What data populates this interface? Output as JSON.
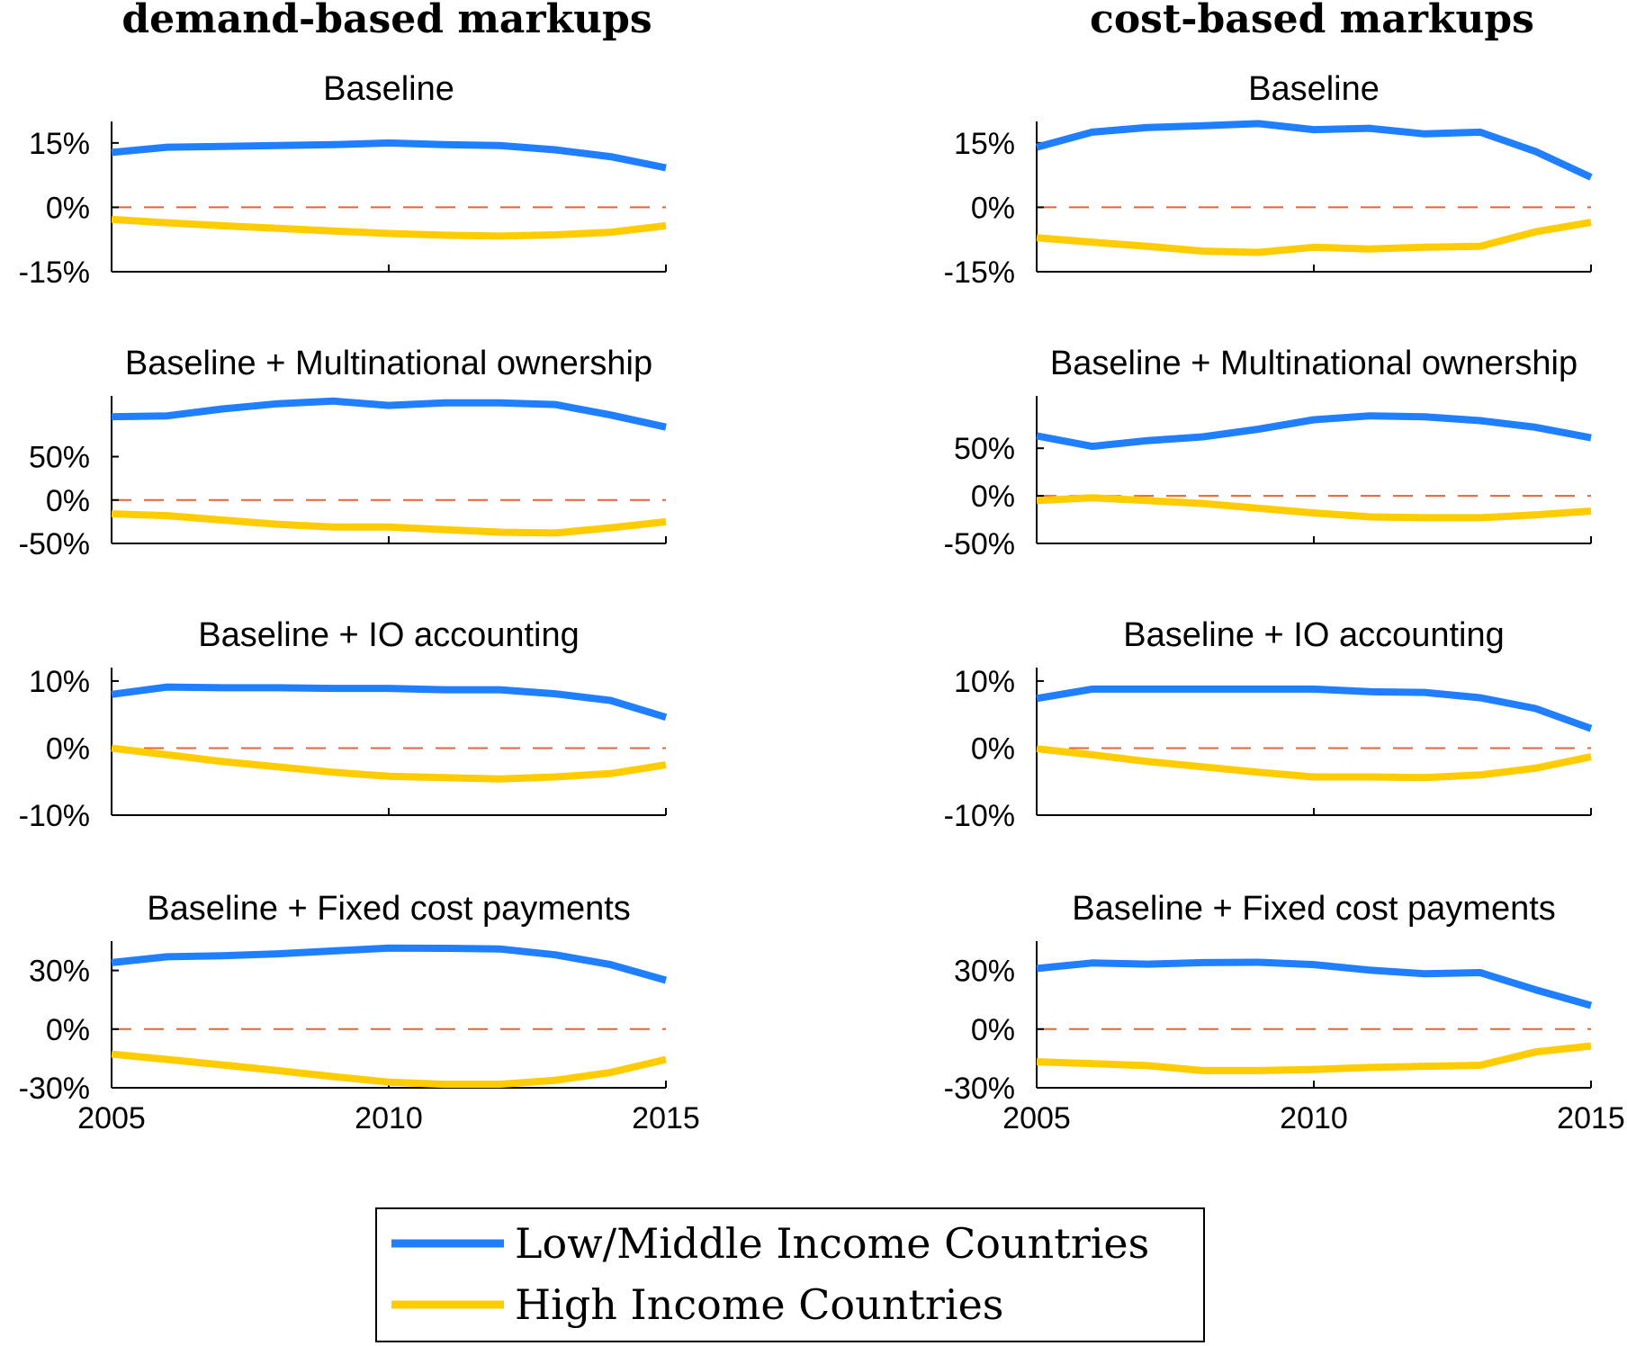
{
  "column_titles": [
    "demand-based markups",
    "cost-based markups"
  ],
  "legend": {
    "items": [
      {
        "label": "Low/Middle Income Countries",
        "color": "#1f7fff"
      },
      {
        "label": "High Income Countries",
        "color": "#ffcc00"
      }
    ]
  },
  "colors": {
    "zero_line": "#e0663a",
    "axis": "#000000"
  },
  "chart_data": [
    {
      "type": "line",
      "column": "demand-based markups",
      "title": "Baseline",
      "x": [
        2005,
        2006,
        2007,
        2008,
        2009,
        2010,
        2011,
        2012,
        2013,
        2014,
        2015
      ],
      "xticks": [
        "2005",
        "2010",
        "2015"
      ],
      "ylim": [
        -15,
        20
      ],
      "yticks": [
        15,
        0,
        -15
      ],
      "ytick_labels": [
        "15%",
        "0%",
        "-15%"
      ],
      "series": [
        {
          "name": "Low/Middle Income Countries",
          "values": [
            12.8,
            14,
            14.2,
            14.4,
            14.6,
            15,
            14.6,
            14.4,
            13.4,
            11.8,
            9.2
          ]
        },
        {
          "name": "High Income Countries",
          "values": [
            -2.8,
            -3.6,
            -4.3,
            -4.9,
            -5.5,
            -6.1,
            -6.5,
            -6.7,
            -6.4,
            -5.8,
            -4.3
          ]
        }
      ]
    },
    {
      "type": "line",
      "column": "cost-based markups",
      "title": "Baseline",
      "x": [
        2005,
        2006,
        2007,
        2008,
        2009,
        2010,
        2011,
        2012,
        2013,
        2014,
        2015
      ],
      "xticks": [
        "2005",
        "2010",
        "2015"
      ],
      "ylim": [
        -15,
        20
      ],
      "yticks": [
        15,
        0,
        -15
      ],
      "ytick_labels": [
        "15%",
        "0%",
        "-15%"
      ],
      "series": [
        {
          "name": "Low/Middle Income Countries",
          "values": [
            14,
            17.5,
            18.6,
            19,
            19.5,
            18.1,
            18.4,
            17.1,
            17.5,
            13,
            7
          ]
        },
        {
          "name": "High Income Countries",
          "values": [
            -7.1,
            -8.1,
            -9.1,
            -10.2,
            -10.5,
            -9.3,
            -9.7,
            -9.3,
            -9.1,
            -5.7,
            -3.5
          ]
        }
      ]
    },
    {
      "type": "line",
      "column": "demand-based markups",
      "title": "Baseline + Multinational ownership",
      "x": [
        2005,
        2006,
        2007,
        2008,
        2009,
        2010,
        2011,
        2012,
        2013,
        2014,
        2015
      ],
      "xticks": [
        "2005",
        "2010",
        "2015"
      ],
      "ylim": [
        -50,
        120
      ],
      "yticks": [
        50,
        0,
        -50
      ],
      "ytick_labels": [
        "50%",
        "0%",
        "-50%"
      ],
      "series": [
        {
          "name": "Low/Middle Income Countries",
          "values": [
            96,
            97,
            105,
            111,
            114,
            109,
            112,
            112,
            110,
            98,
            84
          ]
        },
        {
          "name": "High Income Countries",
          "values": [
            -16,
            -18,
            -23,
            -28,
            -31,
            -31,
            -34,
            -37,
            -38,
            -32,
            -25
          ]
        }
      ]
    },
    {
      "type": "line",
      "column": "cost-based markups",
      "title": "Baseline + Multinational ownership",
      "x": [
        2005,
        2006,
        2007,
        2008,
        2009,
        2010,
        2011,
        2012,
        2013,
        2014,
        2015
      ],
      "xticks": [
        "2005",
        "2010",
        "2015"
      ],
      "ylim": [
        -50,
        105
      ],
      "yticks": [
        50,
        0,
        -50
      ],
      "ytick_labels": [
        "50%",
        "0%",
        "-50%"
      ],
      "series": [
        {
          "name": "Low/Middle Income Countries",
          "values": [
            63,
            52,
            58,
            62,
            70,
            80,
            84,
            83,
            79,
            72,
            61
          ]
        },
        {
          "name": "High Income Countries",
          "values": [
            -5,
            -2,
            -5,
            -8,
            -13,
            -18,
            -22,
            -23,
            -23,
            -20,
            -16
          ]
        }
      ]
    },
    {
      "type": "line",
      "column": "demand-based markups",
      "title": "Baseline + IO accounting",
      "x": [
        2005,
        2006,
        2007,
        2008,
        2009,
        2010,
        2011,
        2012,
        2013,
        2014,
        2015
      ],
      "xticks": [
        "2005",
        "2010",
        "2015"
      ],
      "ylim": [
        -10,
        12
      ],
      "yticks": [
        10,
        0,
        -10
      ],
      "ytick_labels": [
        "10%",
        "0%",
        "-10%"
      ],
      "series": [
        {
          "name": "Low/Middle Income Countries",
          "values": [
            8,
            9.1,
            9,
            9,
            8.9,
            8.9,
            8.7,
            8.7,
            8.1,
            7.1,
            4.6
          ]
        },
        {
          "name": "High Income Countries",
          "values": [
            0,
            -1,
            -2,
            -2.8,
            -3.6,
            -4.2,
            -4.4,
            -4.6,
            -4.3,
            -3.8,
            -2.5
          ]
        }
      ]
    },
    {
      "type": "line",
      "column": "cost-based markups",
      "title": "Baseline + IO accounting",
      "x": [
        2005,
        2006,
        2007,
        2008,
        2009,
        2010,
        2011,
        2012,
        2013,
        2014,
        2015
      ],
      "xticks": [
        "2005",
        "2010",
        "2015"
      ],
      "ylim": [
        -10,
        12
      ],
      "yticks": [
        10,
        0,
        -10
      ],
      "ytick_labels": [
        "10%",
        "0%",
        "-10%"
      ],
      "series": [
        {
          "name": "Low/Middle Income Countries",
          "values": [
            7.4,
            8.8,
            8.8,
            8.8,
            8.8,
            8.8,
            8.4,
            8.3,
            7.5,
            5.9,
            2.9
          ]
        },
        {
          "name": "High Income Countries",
          "values": [
            -0.1,
            -1,
            -2,
            -2.8,
            -3.6,
            -4.3,
            -4.3,
            -4.4,
            -4,
            -3,
            -1.3
          ]
        }
      ]
    },
    {
      "type": "line",
      "column": "demand-based markups",
      "title": "Baseline + Fixed cost payments",
      "x": [
        2005,
        2006,
        2007,
        2008,
        2009,
        2010,
        2011,
        2012,
        2013,
        2014,
        2015
      ],
      "xticks": [
        "2005",
        "2010",
        "2015"
      ],
      "ylim": [
        -30,
        45
      ],
      "yticks": [
        30,
        0,
        -30
      ],
      "ytick_labels": [
        "30%",
        "0%",
        "-30%"
      ],
      "series": [
        {
          "name": "Low/Middle Income Countries",
          "values": [
            34,
            37,
            37.5,
            38.5,
            40,
            41.4,
            41.3,
            41,
            38,
            33,
            25
          ]
        },
        {
          "name": "High Income Countries",
          "values": [
            -12.8,
            -15.5,
            -18.3,
            -21.2,
            -24.3,
            -27.1,
            -28.2,
            -28.2,
            -26.2,
            -22.2,
            -15.5
          ]
        }
      ]
    },
    {
      "type": "line",
      "column": "cost-based markups",
      "title": "Baseline + Fixed cost payments",
      "x": [
        2005,
        2006,
        2007,
        2008,
        2009,
        2010,
        2011,
        2012,
        2013,
        2014,
        2015
      ],
      "xticks": [
        "2005",
        "2010",
        "2015"
      ],
      "ylim": [
        -30,
        45
      ],
      "yticks": [
        30,
        0,
        -30
      ],
      "ytick_labels": [
        "30%",
        "0%",
        "-30%"
      ],
      "series": [
        {
          "name": "Low/Middle Income Countries",
          "values": [
            31,
            33.8,
            33.2,
            34,
            34.2,
            33,
            30.2,
            28.3,
            28.9,
            20.1,
            12.1
          ]
        },
        {
          "name": "High Income Countries",
          "values": [
            -16.7,
            -17.6,
            -18.7,
            -21.2,
            -21.2,
            -20.6,
            -19.6,
            -19,
            -18.5,
            -11.7,
            -8.6
          ]
        }
      ]
    }
  ]
}
